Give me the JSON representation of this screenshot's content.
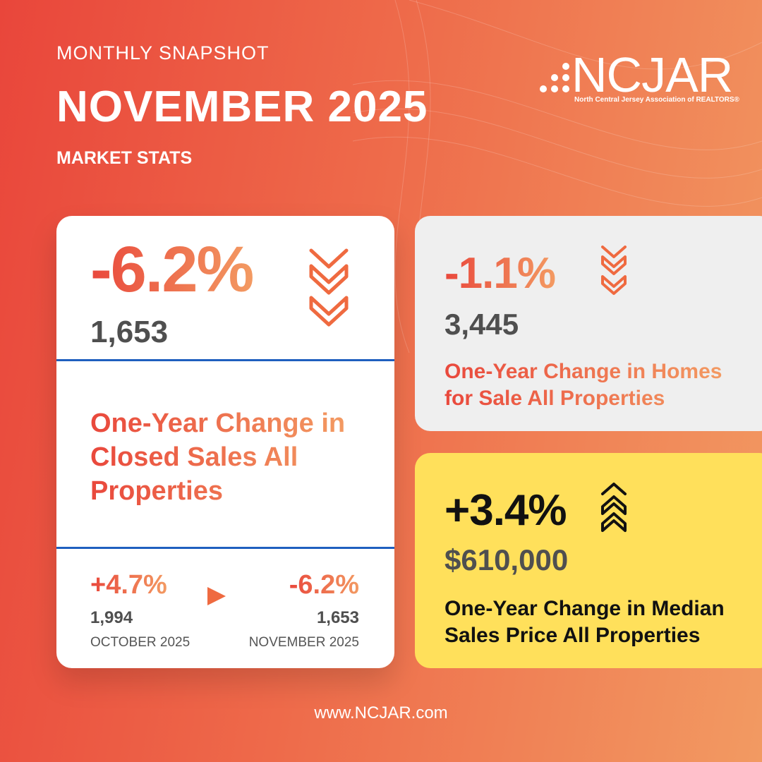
{
  "header": {
    "kicker": "MONTHLY SNAPSHOT",
    "title": "NOVEMBER 2025",
    "subtitle": "MARKET STATS"
  },
  "logo": {
    "text": "NCJAR",
    "tagline": "North Central Jersey  Association of REALTORS®"
  },
  "closed_sales": {
    "change": "-6.2%",
    "count": "1,653",
    "direction": "down",
    "label_lines": [
      "One-Year Change in",
      "Closed Sales All",
      "Properties"
    ],
    "comparison": {
      "prev_change": "+4.7%",
      "prev_count": "1,994",
      "prev_period": "OCTOBER 2025",
      "curr_change": "-6.2%",
      "curr_count": "1,653",
      "curr_period": "NOVEMBER 2025"
    }
  },
  "homes_for_sale": {
    "change": "-1.1%",
    "count": "3,445",
    "direction": "down",
    "label_lines": [
      "One-Year Change in Homes",
      "for Sale All Properties"
    ]
  },
  "median_price": {
    "change": "+3.4%",
    "value": "$610,000",
    "direction": "up",
    "label_lines": [
      "One-Year Change in Median",
      "Sales Price All Properties"
    ]
  },
  "footer": {
    "url": "www.NCJAR.com"
  },
  "colors": {
    "accent": "#ef6a45",
    "divider": "#1f5fbf",
    "highlight": "#ffe05b",
    "card_gray": "#efefef"
  }
}
